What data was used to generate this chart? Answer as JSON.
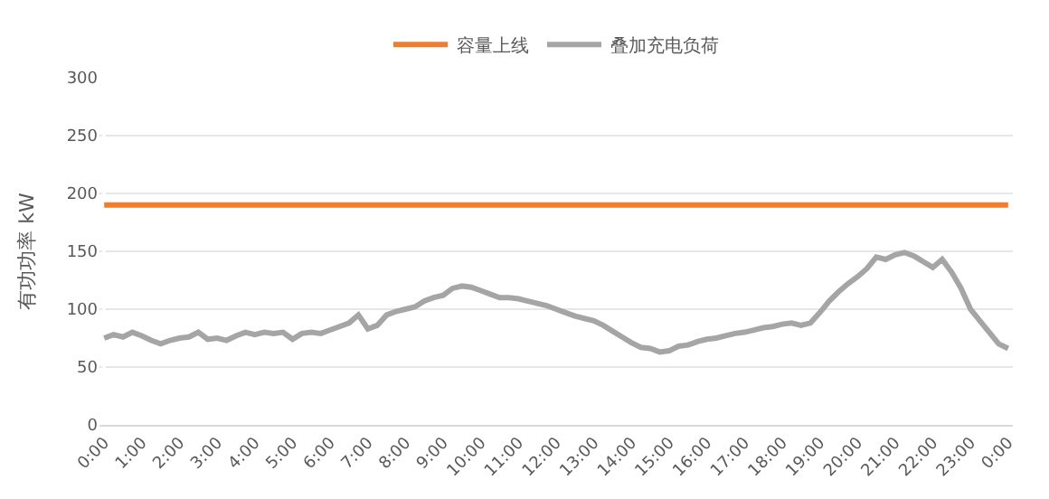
{
  "chart_data": {
    "type": "line",
    "ylabel": "有功功率 kW",
    "categories": [
      "0:00",
      null,
      null,
      null,
      "1:00",
      null,
      null,
      null,
      "2:00",
      null,
      null,
      null,
      "3:00",
      null,
      null,
      null,
      "4:00",
      null,
      null,
      null,
      "5:00",
      null,
      null,
      null,
      "6:00",
      null,
      null,
      null,
      "7:00",
      null,
      null,
      null,
      "8:00",
      null,
      null,
      null,
      "9:00",
      null,
      null,
      null,
      "10:00",
      null,
      null,
      null,
      "11:00",
      null,
      null,
      null,
      "12:00",
      null,
      null,
      null,
      "13:00",
      null,
      null,
      null,
      "14:00",
      null,
      null,
      null,
      "15:00",
      null,
      null,
      null,
      "16:00",
      null,
      null,
      null,
      "17:00",
      null,
      null,
      null,
      "18:00",
      null,
      null,
      null,
      "19:00",
      null,
      null,
      null,
      "20:00",
      null,
      null,
      null,
      "21:00",
      null,
      null,
      null,
      "22:00",
      null,
      null,
      null,
      "23:00",
      null,
      null,
      null,
      "0:00"
    ],
    "series": [
      {
        "name": "容量上线",
        "color": "#ed7d31",
        "values": [
          190,
          190,
          190,
          190,
          190,
          190,
          190,
          190,
          190,
          190,
          190,
          190,
          190,
          190,
          190,
          190,
          190,
          190,
          190,
          190,
          190,
          190,
          190,
          190,
          190,
          190,
          190,
          190,
          190,
          190,
          190,
          190,
          190,
          190,
          190,
          190,
          190,
          190,
          190,
          190,
          190,
          190,
          190,
          190,
          190,
          190,
          190,
          190,
          190,
          190,
          190,
          190,
          190,
          190,
          190,
          190,
          190,
          190,
          190,
          190,
          190,
          190,
          190,
          190,
          190,
          190,
          190,
          190,
          190,
          190,
          190,
          190,
          190,
          190,
          190,
          190,
          190,
          190,
          190,
          190,
          190,
          190,
          190,
          190,
          190,
          190,
          190,
          190,
          190,
          190,
          190,
          190,
          190,
          190,
          190,
          190,
          190
        ]
      },
      {
        "name": "叠加充电负荷",
        "color": "#a5a5a5",
        "values": [
          75,
          78,
          76,
          80,
          77,
          73,
          70,
          73,
          75,
          76,
          80,
          74,
          75,
          73,
          77,
          80,
          78,
          80,
          79,
          80,
          74,
          79,
          80,
          79,
          82,
          85,
          88,
          95,
          83,
          86,
          95,
          98,
          100,
          102,
          107,
          110,
          112,
          118,
          120,
          119,
          116,
          113,
          110,
          110,
          109,
          107,
          105,
          103,
          100,
          97,
          94,
          92,
          90,
          86,
          81,
          76,
          71,
          67,
          66,
          63,
          64,
          68,
          69,
          72,
          74,
          75,
          77,
          79,
          80,
          82,
          84,
          85,
          87,
          88,
          86,
          88,
          97,
          107,
          115,
          122,
          128,
          135,
          145,
          143,
          147,
          149,
          146,
          141,
          136,
          143,
          132,
          118,
          100,
          90,
          80,
          70,
          66
        ]
      }
    ],
    "ylim": [
      0,
      300
    ],
    "yticks": [
      0,
      50,
      100,
      150,
      200,
      250,
      300
    ],
    "grid": "y",
    "legend": "top",
    "marker": "none",
    "line_style": "solid"
  }
}
